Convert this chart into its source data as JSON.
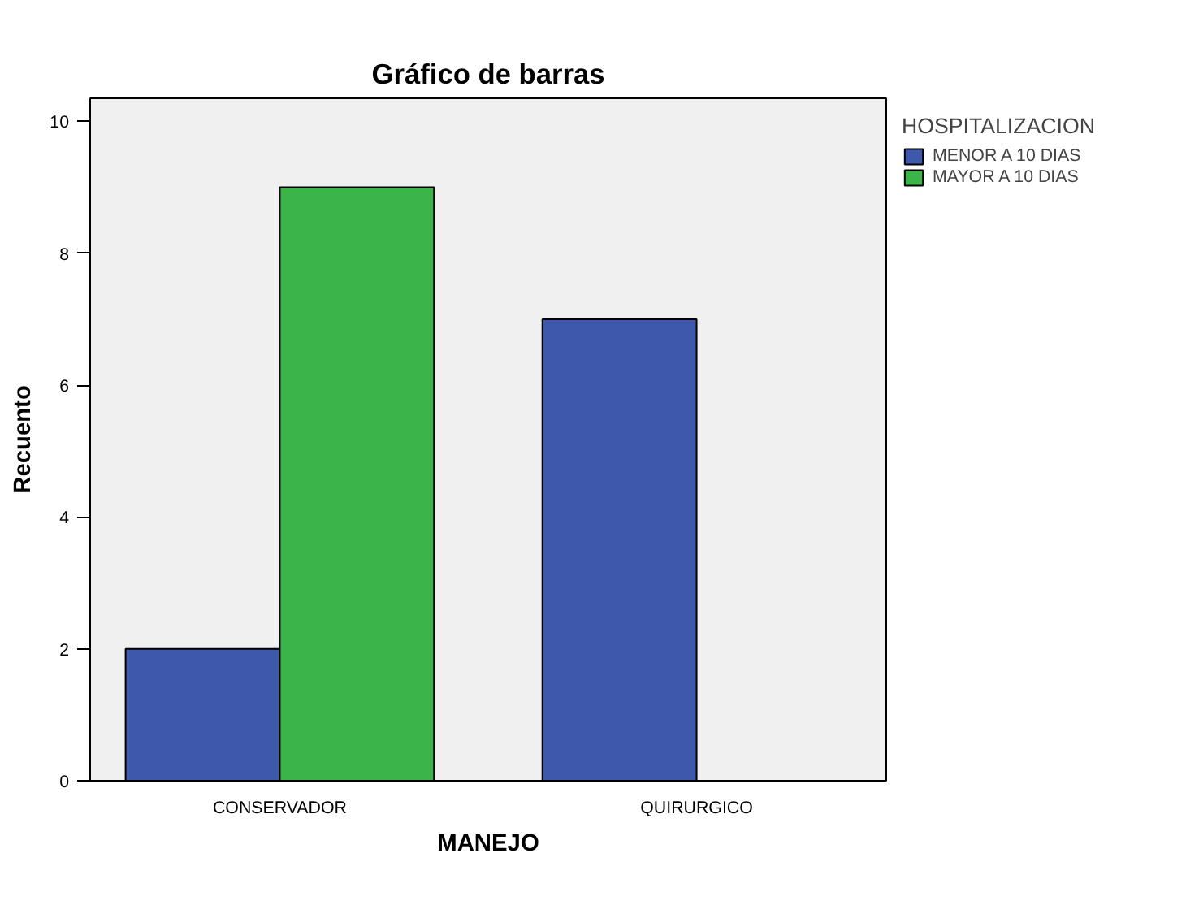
{
  "chart_data": {
    "type": "bar",
    "title": "Gráfico de barras",
    "xlabel": "MANEJO",
    "ylabel": "Recuento",
    "legend_title": "HOSPITALIZACION",
    "categories": [
      "CONSERVADOR",
      "QUIRURGICO"
    ],
    "series": [
      {
        "name": "MENOR A 10 DIAS",
        "color": "#3e58ac",
        "values": [
          2,
          7
        ]
      },
      {
        "name": "MAYOR A 10 DIAS",
        "color": "#3bb54a",
        "values": [
          9,
          null
        ]
      }
    ],
    "ylim": [
      0,
      10.35
    ],
    "yticks": [
      0,
      2,
      4,
      6,
      8,
      10
    ],
    "grid": false,
    "legend": "right"
  }
}
